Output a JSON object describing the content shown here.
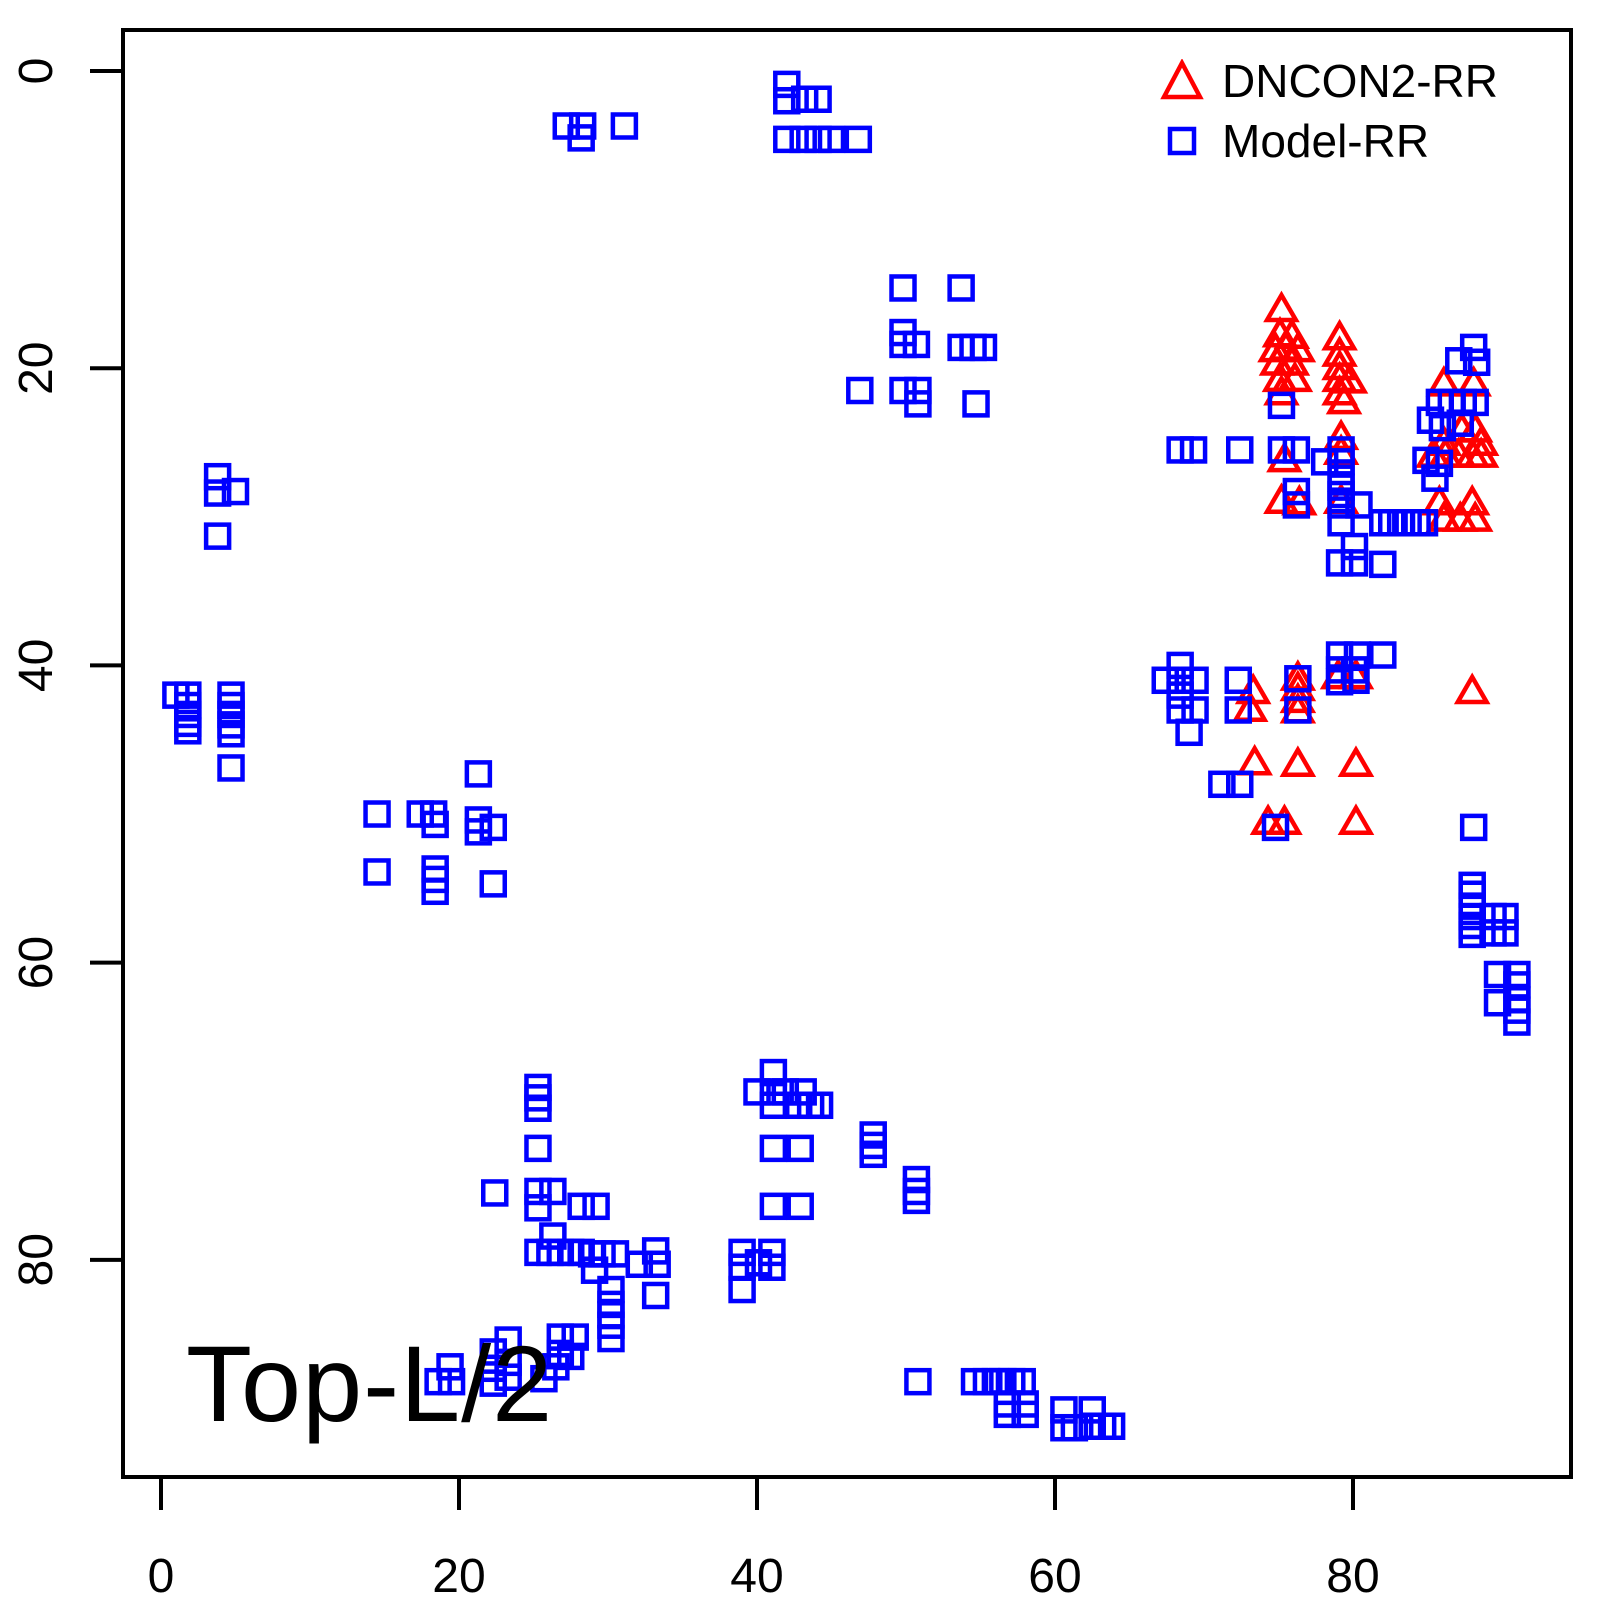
{
  "annotation": "Top-L/2",
  "legend": {
    "items": [
      {
        "label": "DNCON2-RR",
        "marker": "triangle",
        "color": "#ff0000"
      },
      {
        "label": "Model-RR",
        "marker": "square",
        "color": "#0000ff"
      }
    ]
  },
  "axes": {
    "x_ticks": [
      0,
      20,
      40,
      60,
      80
    ],
    "y_ticks": [
      0,
      20,
      40,
      60,
      80
    ],
    "y_axis_inverted": true
  },
  "colors": {
    "dncon2": "#ff0000",
    "model": "#0000ff",
    "frame": "#000000"
  },
  "chart_data": {
    "type": "scatter",
    "title": "",
    "xlabel": "",
    "ylabel": "",
    "annotation": "Top-L/2",
    "xlim": [
      -2.6,
      94.6
    ],
    "ylim": [
      94.6,
      -2.8
    ],
    "y_axis_inverted": true,
    "grid": false,
    "legend_position": "top-right",
    "series": [
      {
        "name": "DNCON2-RR",
        "marker": "triangle",
        "color": "#ff0000",
        "points": [
          [
            75.2,
            16.2
          ],
          [
            75.1,
            17.9
          ],
          [
            75.9,
            18.0
          ],
          [
            74.8,
            18.9
          ],
          [
            75.5,
            18.8
          ],
          [
            76.3,
            18.9
          ],
          [
            74.9,
            19.8
          ],
          [
            75.9,
            19.8
          ],
          [
            75.1,
            20.9
          ],
          [
            76.1,
            20.9
          ],
          [
            75.2,
            21.8
          ],
          [
            79.1,
            18.1
          ],
          [
            79.1,
            19.2
          ],
          [
            79.1,
            20.1
          ],
          [
            79.1,
            20.9
          ],
          [
            79.8,
            21.0
          ],
          [
            79.1,
            21.8
          ],
          [
            79.4,
            22.4
          ],
          [
            86.1,
            21.2
          ],
          [
            88.1,
            21.2
          ],
          [
            79.2,
            24.8
          ],
          [
            79.2,
            25.8
          ],
          [
            75.4,
            26.3
          ],
          [
            87.3,
            24.3
          ],
          [
            88.2,
            24.3
          ],
          [
            86.1,
            25.2
          ],
          [
            88.6,
            25.2
          ],
          [
            85.4,
            26.0
          ],
          [
            86.2,
            26.0
          ],
          [
            87.1,
            26.0
          ],
          [
            88.0,
            26.0
          ],
          [
            88.6,
            26.0
          ],
          [
            75.2,
            29.1
          ],
          [
            76.4,
            29.2
          ],
          [
            79.2,
            29.1
          ],
          [
            85.8,
            29.2
          ],
          [
            88.0,
            29.2
          ],
          [
            86.1,
            30.3
          ],
          [
            87.2,
            30.3
          ],
          [
            88.2,
            30.3
          ],
          [
            76.3,
            41.0
          ],
          [
            76.3,
            41.7
          ],
          [
            76.3,
            42.5
          ],
          [
            76.3,
            43.2
          ],
          [
            73.3,
            41.9
          ],
          [
            73.1,
            43.1
          ],
          [
            79.0,
            40.9
          ],
          [
            80.2,
            40.9
          ],
          [
            88.0,
            41.9
          ],
          [
            73.4,
            46.7
          ],
          [
            76.3,
            46.8
          ],
          [
            80.2,
            46.8
          ],
          [
            74.3,
            50.7
          ],
          [
            75.4,
            50.7
          ],
          [
            80.2,
            50.7
          ]
        ]
      },
      {
        "name": "Model-RR",
        "marker": "square",
        "color": "#0000ff",
        "points": [
          [
            27.2,
            3.7
          ],
          [
            28.3,
            3.7
          ],
          [
            28.2,
            4.5
          ],
          [
            31.1,
            3.7
          ],
          [
            42.0,
            0.9
          ],
          [
            42.0,
            2.0
          ],
          [
            43.2,
            1.9
          ],
          [
            44.1,
            1.9
          ],
          [
            42.0,
            4.6
          ],
          [
            43.1,
            4.6
          ],
          [
            44.1,
            4.6
          ],
          [
            45.0,
            4.6
          ],
          [
            46.8,
            4.6
          ],
          [
            49.8,
            14.6
          ],
          [
            53.7,
            14.6
          ],
          [
            49.8,
            17.6
          ],
          [
            49.8,
            18.4
          ],
          [
            50.7,
            18.4
          ],
          [
            53.7,
            18.6
          ],
          [
            54.5,
            18.6
          ],
          [
            55.2,
            18.6
          ],
          [
            46.9,
            21.5
          ],
          [
            49.8,
            21.5
          ],
          [
            50.8,
            21.5
          ],
          [
            50.8,
            22.4
          ],
          [
            54.7,
            22.4
          ],
          [
            3.8,
            27.3
          ],
          [
            3.8,
            28.4
          ],
          [
            5.0,
            28.3
          ],
          [
            3.8,
            31.3
          ],
          [
            1.0,
            42.0
          ],
          [
            1.8,
            42.0
          ],
          [
            1.8,
            42.7
          ],
          [
            1.8,
            43.3
          ],
          [
            1.8,
            43.9
          ],
          [
            1.8,
            44.4
          ],
          [
            4.7,
            42.0
          ],
          [
            4.7,
            42.7
          ],
          [
            4.7,
            43.3
          ],
          [
            4.7,
            44.0
          ],
          [
            4.7,
            44.6
          ],
          [
            4.7,
            46.9
          ],
          [
            21.3,
            47.3
          ],
          [
            14.5,
            50.0
          ],
          [
            17.4,
            50.0
          ],
          [
            18.3,
            50.0
          ],
          [
            18.4,
            50.7
          ],
          [
            21.3,
            50.4
          ],
          [
            21.3,
            51.2
          ],
          [
            22.3,
            50.9
          ],
          [
            14.5,
            53.9
          ],
          [
            18.4,
            53.7
          ],
          [
            18.4,
            54.4
          ],
          [
            18.4,
            55.2
          ],
          [
            22.3,
            54.7
          ],
          [
            88.1,
            18.6
          ],
          [
            87.1,
            19.5
          ],
          [
            88.3,
            19.6
          ],
          [
            85.8,
            22.3
          ],
          [
            86.6,
            22.3
          ],
          [
            87.4,
            22.3
          ],
          [
            88.2,
            22.3
          ],
          [
            85.2,
            23.5
          ],
          [
            86.0,
            24.0
          ],
          [
            87.2,
            23.7
          ],
          [
            75.2,
            22.5
          ],
          [
            68.4,
            25.5
          ],
          [
            69.3,
            25.5
          ],
          [
            72.4,
            25.5
          ],
          [
            75.2,
            25.5
          ],
          [
            76.2,
            25.5
          ],
          [
            78.1,
            26.3
          ],
          [
            79.2,
            25.5
          ],
          [
            79.2,
            26.3
          ],
          [
            84.9,
            26.2
          ],
          [
            85.8,
            26.4
          ],
          [
            85.5,
            27.4
          ],
          [
            76.2,
            28.3
          ],
          [
            76.2,
            29.2
          ],
          [
            79.2,
            27.4
          ],
          [
            79.2,
            28.0
          ],
          [
            79.2,
            28.5
          ],
          [
            79.2,
            29.2
          ],
          [
            80.4,
            29.2
          ],
          [
            79.2,
            30.4
          ],
          [
            82.0,
            30.4
          ],
          [
            82.6,
            30.4
          ],
          [
            83.2,
            30.4
          ],
          [
            83.7,
            30.4
          ],
          [
            84.3,
            30.4
          ],
          [
            84.8,
            30.4
          ],
          [
            80.1,
            32.0
          ],
          [
            79.1,
            33.1
          ],
          [
            80.1,
            33.1
          ],
          [
            82.0,
            33.2
          ],
          [
            79.1,
            39.3
          ],
          [
            80.3,
            39.3
          ],
          [
            82.0,
            39.3
          ],
          [
            79.1,
            40.3
          ],
          [
            80.1,
            40.3
          ],
          [
            79.1,
            41.1
          ],
          [
            80.2,
            41.0
          ],
          [
            76.3,
            40.9
          ],
          [
            76.3,
            43.0
          ],
          [
            72.3,
            41.0
          ],
          [
            72.3,
            43.0
          ],
          [
            68.4,
            40.0
          ],
          [
            67.4,
            41.0
          ],
          [
            68.4,
            41.0
          ],
          [
            69.4,
            41.0
          ],
          [
            68.4,
            42.0
          ],
          [
            68.4,
            43.0
          ],
          [
            69.4,
            43.0
          ],
          [
            69.0,
            44.5
          ],
          [
            71.2,
            48.0
          ],
          [
            72.4,
            48.0
          ],
          [
            74.8,
            50.9
          ],
          [
            88.1,
            50.9
          ],
          [
            88.0,
            54.8
          ],
          [
            88.0,
            55.4
          ],
          [
            88.0,
            56.2
          ],
          [
            88.0,
            56.9
          ],
          [
            88.0,
            57.5
          ],
          [
            88.0,
            58.1
          ],
          [
            89.4,
            56.9
          ],
          [
            90.2,
            56.9
          ],
          [
            89.4,
            58.0
          ],
          [
            90.2,
            58.0
          ],
          [
            89.7,
            60.8
          ],
          [
            91.0,
            60.8
          ],
          [
            91.0,
            61.5
          ],
          [
            89.7,
            62.7
          ],
          [
            91.0,
            62.5
          ],
          [
            91.0,
            63.2
          ],
          [
            91.0,
            64.0
          ],
          [
            41.1,
            67.4
          ],
          [
            40.0,
            68.7
          ],
          [
            41.1,
            68.7
          ],
          [
            41.9,
            68.7
          ],
          [
            43.1,
            68.7
          ],
          [
            41.1,
            69.6
          ],
          [
            42.8,
            69.6
          ],
          [
            43.6,
            69.6
          ],
          [
            44.2,
            69.6
          ],
          [
            41.1,
            72.5
          ],
          [
            42.9,
            72.5
          ],
          [
            47.8,
            71.6
          ],
          [
            47.8,
            72.3
          ],
          [
            47.8,
            72.9
          ],
          [
            50.7,
            74.6
          ],
          [
            50.7,
            75.4
          ],
          [
            50.7,
            76.0
          ],
          [
            41.1,
            76.4
          ],
          [
            42.9,
            76.4
          ],
          [
            39.0,
            79.5
          ],
          [
            41.0,
            79.5
          ],
          [
            40.1,
            80.2
          ],
          [
            39.0,
            80.5
          ],
          [
            41.0,
            80.5
          ],
          [
            39.0,
            82.0
          ],
          [
            25.3,
            68.4
          ],
          [
            25.3,
            69.1
          ],
          [
            25.3,
            69.8
          ],
          [
            25.3,
            72.5
          ],
          [
            22.4,
            75.5
          ],
          [
            25.3,
            75.4
          ],
          [
            26.3,
            75.4
          ],
          [
            25.3,
            76.5
          ],
          [
            28.2,
            76.4
          ],
          [
            29.2,
            76.4
          ],
          [
            26.3,
            78.4
          ],
          [
            25.3,
            79.5
          ],
          [
            26.1,
            79.5
          ],
          [
            26.8,
            79.5
          ],
          [
            27.5,
            79.5
          ],
          [
            28.2,
            79.5
          ],
          [
            28.9,
            79.6
          ],
          [
            29.6,
            79.6
          ],
          [
            30.5,
            79.6
          ],
          [
            29.1,
            80.7
          ],
          [
            33.2,
            79.4
          ],
          [
            32.1,
            80.3
          ],
          [
            33.3,
            80.3
          ],
          [
            30.2,
            82.0
          ],
          [
            30.2,
            83.0
          ],
          [
            30.2,
            83.7
          ],
          [
            30.2,
            84.4
          ],
          [
            30.2,
            85.3
          ],
          [
            33.2,
            82.4
          ],
          [
            26.8,
            85.2
          ],
          [
            27.8,
            85.2
          ],
          [
            26.8,
            86.3
          ],
          [
            27.5,
            86.5
          ],
          [
            26.5,
            87.2
          ],
          [
            25.7,
            88.0
          ],
          [
            23.3,
            85.4
          ],
          [
            22.3,
            86.2
          ],
          [
            23.3,
            86.9
          ],
          [
            22.3,
            87.3
          ],
          [
            23.3,
            87.9
          ],
          [
            22.3,
            88.3
          ],
          [
            19.4,
            87.2
          ],
          [
            18.6,
            88.2
          ],
          [
            19.5,
            88.2
          ],
          [
            50.8,
            88.2
          ],
          [
            54.6,
            88.2
          ],
          [
            55.4,
            88.2
          ],
          [
            56.0,
            88.2
          ],
          [
            56.5,
            88.2
          ],
          [
            57.1,
            88.2
          ],
          [
            57.8,
            88.2
          ],
          [
            56.8,
            89.7
          ],
          [
            58.0,
            89.7
          ],
          [
            56.8,
            90.4
          ],
          [
            58.0,
            90.4
          ],
          [
            60.6,
            90.1
          ],
          [
            62.5,
            90.1
          ],
          [
            60.6,
            91.3
          ],
          [
            61.3,
            91.3
          ],
          [
            62.5,
            91.2
          ],
          [
            63.2,
            91.2
          ],
          [
            63.8,
            91.2
          ]
        ]
      }
    ]
  }
}
